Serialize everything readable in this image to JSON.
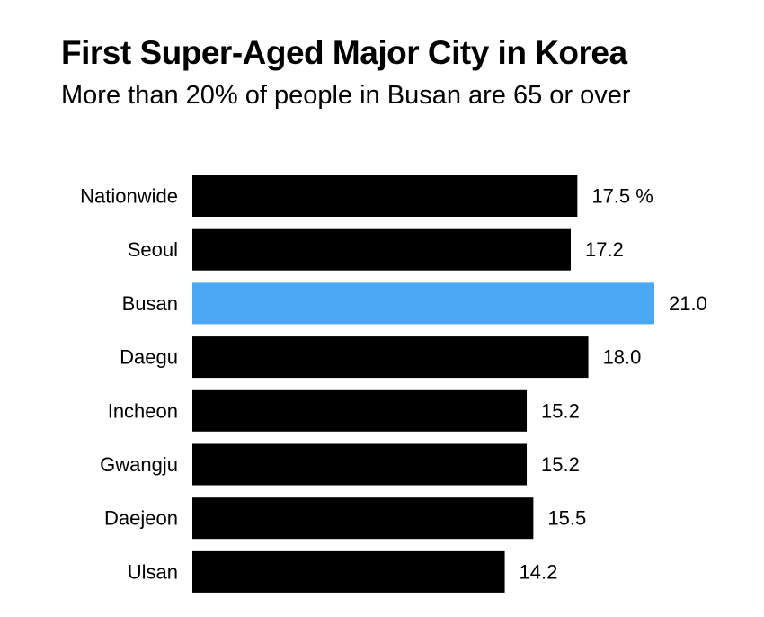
{
  "chart_data": {
    "type": "bar",
    "orientation": "horizontal",
    "title": "First Super-Aged Major City in Korea",
    "subtitle": "More than 20% of people in Busan are 65 or over",
    "categories": [
      "Nationwide",
      "Seoul",
      "Busan",
      "Daegu",
      "Incheon",
      "Gwangju",
      "Daejeon",
      "Ulsan"
    ],
    "values": [
      17.5,
      17.2,
      21.0,
      18.0,
      15.2,
      15.2,
      15.5,
      14.2
    ],
    "value_labels": [
      "17.5 %",
      "17.2",
      "21.0",
      "18.0",
      "15.2",
      "15.2",
      "15.5",
      "14.2"
    ],
    "highlight_category": "Busan",
    "xlim": [
      0,
      21.0
    ],
    "unit": "%",
    "colors": {
      "bar": "#000000",
      "highlight": "#4aa8f5",
      "text": "#000000"
    }
  }
}
